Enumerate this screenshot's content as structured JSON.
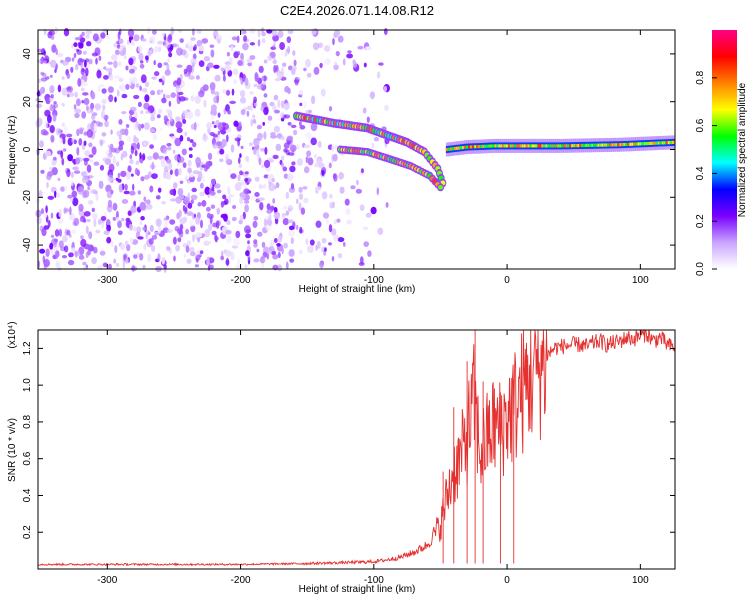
{
  "figure_title": "C2E4.2026.071.14.08.R12",
  "chart_data": [
    {
      "type": "heatmap",
      "title": "C2E4.2026.071.14.08.R12",
      "xlabel": "Height of straight line (km)",
      "ylabel": "Frequency (Hz)",
      "xlim": [
        -352,
        126
      ],
      "ylim": [
        -50,
        50
      ],
      "xticks": [
        -300,
        -200,
        -100,
        0,
        100
      ],
      "xtick_labels": [
        "-300",
        "-200",
        "-100",
        "0",
        "100"
      ],
      "yticks": [
        -40,
        -20,
        0,
        20,
        40
      ],
      "ytick_labels": [
        "-40",
        "-20",
        "0",
        "20",
        "40"
      ],
      "colorbar": {
        "label": "Normalized spectral amplitude",
        "range": [
          0,
          1
        ],
        "ticks": [
          0.0,
          0.2,
          0.4,
          0.6,
          0.8
        ],
        "tick_labels": [
          "0.0",
          "0.2",
          "0.4",
          "0.6",
          "0.8"
        ],
        "colors": [
          "#ffffff",
          "#c9a4ff",
          "#7a00ff",
          "#0000ff",
          "#00ffff",
          "#00ff00",
          "#ffff00",
          "#ff8000",
          "#ff0000",
          "#ff0088"
        ]
      },
      "features": [
        {
          "name": "noise-region",
          "x_range": [
            -352,
            -90
          ],
          "y_range": [
            -50,
            50
          ],
          "amplitude": 0.15
        },
        {
          "name": "upper-branch",
          "points": [
            [
              -158,
              14
            ],
            [
              -130,
              11
            ],
            [
              -105,
              9
            ],
            [
              -90,
              6
            ],
            [
              -75,
              3
            ],
            [
              -62,
              -1
            ],
            [
              -52,
              -8
            ],
            [
              -47,
              -16
            ]
          ]
        },
        {
          "name": "lower-branch",
          "points": [
            [
              -125,
              0
            ],
            [
              -105,
              -1
            ],
            [
              -88,
              -4
            ],
            [
              -72,
              -7
            ],
            [
              -58,
              -11
            ],
            [
              -48,
              -17
            ]
          ]
        },
        {
          "name": "carrier-line",
          "points": [
            [
              -45,
              0
            ],
            [
              -30,
              1
            ],
            [
              -10,
              1.5
            ],
            [
              0,
              1.5
            ],
            [
              40,
              1.5
            ],
            [
              85,
              2
            ],
            [
              126,
              3
            ]
          ]
        }
      ]
    },
    {
      "type": "line",
      "xlabel": "Height of straight line (km)",
      "ylabel": "SNR (10 * v/v)",
      "y_exponent": "(x10⁴)",
      "xlim": [
        -352,
        126
      ],
      "ylim": [
        0,
        13000
      ],
      "xticks": [
        -300,
        -200,
        -100,
        0,
        100
      ],
      "xtick_labels": [
        "-300",
        "-200",
        "-100",
        "0",
        "100"
      ],
      "yticks": [
        2000,
        4000,
        6000,
        8000,
        10000,
        12000
      ],
      "ytick_labels": [
        "0.2",
        "0.4",
        "0.6",
        "0.8",
        "1.0",
        "1.2"
      ],
      "line_color": "#e53030",
      "series": [
        {
          "name": "SNR",
          "x": [
            -352,
            -300,
            -250,
            -200,
            -150,
            -120,
            -100,
            -90,
            -80,
            -70,
            -60,
            -50,
            -45,
            -40,
            -35,
            -30,
            -25,
            -20,
            -15,
            -10,
            -5,
            0,
            5,
            10,
            15,
            20,
            25,
            30,
            35,
            40,
            45,
            50,
            55,
            60,
            65,
            70,
            75,
            80,
            85,
            90,
            95,
            100,
            105,
            110,
            115,
            120,
            126
          ],
          "values": [
            250,
            250,
            250,
            250,
            300,
            350,
            400,
            500,
            650,
            900,
            1300,
            2400,
            4000,
            5300,
            6000,
            7200,
            9000,
            6300,
            7100,
            7800,
            7600,
            8300,
            8800,
            9500,
            10100,
            10800,
            11100,
            11600,
            12000,
            12100,
            12150,
            12200,
            12200,
            12100,
            12300,
            12400,
            12200,
            12300,
            12400,
            12600,
            12500,
            12700,
            12800,
            12400,
            12600,
            12200,
            12000
          ]
        }
      ],
      "spikes": [
        {
          "x": -48,
          "value": 5300
        },
        {
          "x": -40,
          "value": 8800
        },
        {
          "x": -30,
          "value": 11300
        },
        {
          "x": -24,
          "value": 13000
        },
        {
          "x": -18,
          "value": 10200
        },
        {
          "x": -5,
          "value": 9600
        },
        {
          "x": 5,
          "value": 10300
        }
      ]
    }
  ]
}
